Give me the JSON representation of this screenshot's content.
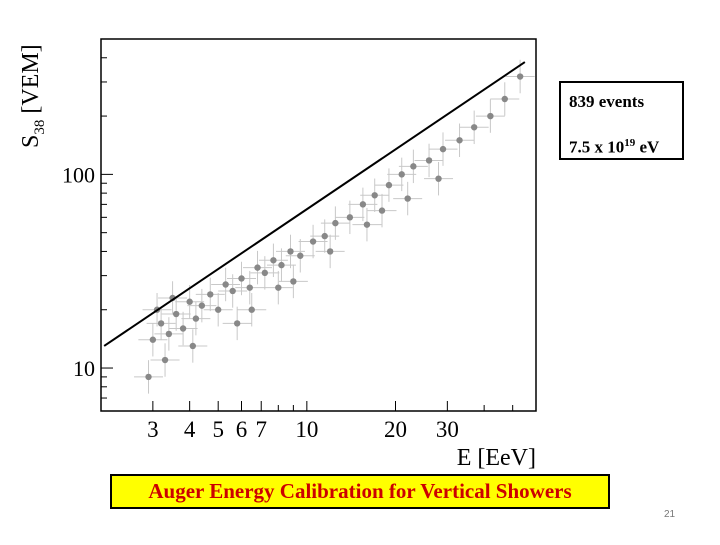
{
  "chart_data": {
    "type": "scatter",
    "xlabel": "E [EeV]",
    "ylabel": "S",
    "ylabel_sub": "38",
    "ylabel_unit": " [VEM]",
    "x_scale": "log",
    "y_scale": "log",
    "xlim": [
      2,
      60
    ],
    "ylim": [
      6,
      500
    ],
    "x_ticks": [
      3,
      4,
      5,
      6,
      7,
      10,
      20,
      30
    ],
    "y_ticks": [
      10,
      100
    ],
    "grid": false,
    "error_bars": true,
    "point_color": "#888888",
    "errorbar_color": "#c8c8c8",
    "fit_line": {
      "color": "#000000",
      "points": [
        [
          2.05,
          13
        ],
        [
          55,
          380
        ]
      ]
    },
    "points": [
      [
        3,
        14
      ],
      [
        3.2,
        17
      ],
      [
        3.4,
        15
      ],
      [
        3.6,
        19
      ],
      [
        3.8,
        16
      ],
      [
        4,
        22
      ],
      [
        4.2,
        18
      ],
      [
        4.4,
        21
      ],
      [
        4.7,
        24
      ],
      [
        5,
        20
      ],
      [
        5.3,
        27
      ],
      [
        5.6,
        25
      ],
      [
        6,
        29
      ],
      [
        6.4,
        26
      ],
      [
        6.8,
        33
      ],
      [
        7.2,
        31
      ],
      [
        7.7,
        36
      ],
      [
        8.2,
        34
      ],
      [
        8.8,
        40
      ],
      [
        9.5,
        38
      ],
      [
        10.5,
        45
      ],
      [
        11.5,
        48
      ],
      [
        12.5,
        56
      ],
      [
        14,
        60
      ],
      [
        15.5,
        70
      ],
      [
        17,
        78
      ],
      [
        19,
        88
      ],
      [
        21,
        100
      ],
      [
        23,
        110
      ],
      [
        26,
        118
      ],
      [
        29,
        135
      ],
      [
        33,
        150
      ],
      [
        37,
        175
      ],
      [
        42,
        200
      ],
      [
        47,
        245
      ],
      [
        53,
        320
      ],
      [
        2.9,
        9
      ],
      [
        3.3,
        11
      ],
      [
        3.1,
        20
      ],
      [
        3.5,
        23
      ],
      [
        4.1,
        13
      ],
      [
        5.8,
        17
      ],
      [
        6.5,
        20
      ],
      [
        8,
        26
      ],
      [
        9,
        28
      ],
      [
        12,
        40
      ],
      [
        16,
        55
      ],
      [
        18,
        65
      ],
      [
        22,
        75
      ],
      [
        28,
        95
      ]
    ],
    "annotations": [
      "839 events",
      "7.5 x 10",
      "19",
      " eV"
    ]
  },
  "caption": "Auger Energy Calibration for Vertical Showers",
  "slide_number": "21"
}
